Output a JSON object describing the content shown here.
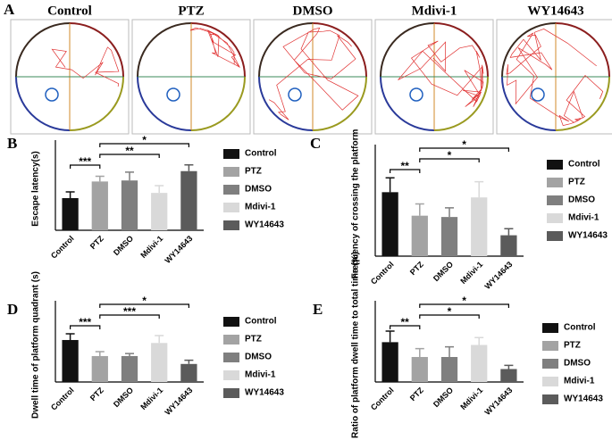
{
  "trajectories": {
    "label": "A",
    "titles": [
      "Control",
      "PTZ",
      "DMSO",
      "Mdivi-1",
      "WY14643"
    ]
  },
  "chart_data": [
    {
      "type": "bar",
      "panel": "B",
      "ylabel": "Escape latency(s)",
      "categories": [
        "Control",
        "PTZ",
        "DMSO",
        "Mdivi-1",
        "WY14643"
      ],
      "values": [
        31,
        47,
        48,
        36,
        57
      ],
      "errors": [
        6,
        5,
        8,
        7,
        6
      ],
      "colors": [
        "#111111",
        "#a3a3a3",
        "#7f7f7f",
        "#d9d9d9",
        "#5b5b5b"
      ],
      "ylim": [
        0,
        80
      ],
      "comparisons": [
        {
          "from": 0,
          "to": 1,
          "label": "***"
        },
        {
          "from": 1,
          "to": 3,
          "label": "**"
        },
        {
          "from": 1,
          "to": 4,
          "label": "*"
        }
      ]
    },
    {
      "type": "bar",
      "panel": "C",
      "ylabel": "Frequency of crossing the platform",
      "categories": [
        "Control",
        "PTZ",
        "DMSO",
        "Mdivi-1",
        "WY14643"
      ],
      "values": [
        4.9,
        3.1,
        3.0,
        4.5,
        1.6
      ],
      "errors": [
        1.1,
        0.9,
        0.7,
        1.2,
        0.5
      ],
      "colors": [
        "#111111",
        "#a3a3a3",
        "#7f7f7f",
        "#d9d9d9",
        "#5b5b5b"
      ],
      "ylim": [
        0,
        8
      ],
      "comparisons": [
        {
          "from": 0,
          "to": 1,
          "label": "**"
        },
        {
          "from": 1,
          "to": 3,
          "label": "*"
        },
        {
          "from": 1,
          "to": 4,
          "label": "*"
        }
      ]
    },
    {
      "type": "bar",
      "panel": "D",
      "ylabel": "Dwell time of platform quadrant  (s)",
      "categories": [
        "Control",
        "PTZ",
        "DMSO",
        "Mdivi-1",
        "WY14643"
      ],
      "values": [
        17,
        10.5,
        10.5,
        15.8,
        7.3
      ],
      "errors": [
        2.5,
        1.8,
        1,
        3,
        1.5
      ],
      "colors": [
        "#111111",
        "#a3a3a3",
        "#7f7f7f",
        "#d9d9d9",
        "#5b5b5b"
      ],
      "ylim": [
        0,
        30
      ],
      "comparisons": [
        {
          "from": 0,
          "to": 1,
          "label": "***"
        },
        {
          "from": 1,
          "to": 3,
          "label": "***"
        },
        {
          "from": 1,
          "to": 4,
          "label": "*"
        }
      ]
    },
    {
      "type": "bar",
      "panel": "E",
      "ylabel": "Ratio of platform dwell time to total time (%)",
      "categories": [
        "Control",
        "PTZ",
        "DMSO",
        "Mdivi-1",
        "WY14643"
      ],
      "values": [
        43,
        27,
        27,
        40,
        14
      ],
      "errors": [
        12,
        9,
        11,
        8,
        4
      ],
      "colors": [
        "#111111",
        "#a3a3a3",
        "#7f7f7f",
        "#d9d9d9",
        "#5b5b5b"
      ],
      "ylim": [
        0,
        80
      ],
      "comparisons": [
        {
          "from": 0,
          "to": 1,
          "label": "**"
        },
        {
          "from": 1,
          "to": 3,
          "label": "*"
        },
        {
          "from": 1,
          "to": 4,
          "label": "*"
        }
      ]
    }
  ]
}
